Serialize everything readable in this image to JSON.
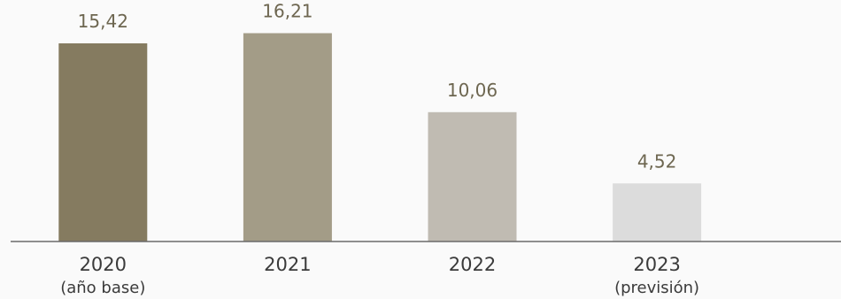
{
  "chart_data": {
    "type": "bar",
    "categories": [
      "2020",
      "2021",
      "2022",
      "2023"
    ],
    "category_sublabels": [
      "(año base)",
      "",
      "",
      "(previsión)"
    ],
    "values": [
      15.42,
      16.21,
      10.06,
      4.52
    ],
    "value_labels": [
      "15,42",
      "16,21",
      "10,06",
      "4,52"
    ],
    "bar_colors": [
      "#857b60",
      "#a39c87",
      "#c0bbb2",
      "#dcdcdc"
    ],
    "title": "",
    "xlabel": "",
    "ylabel": "",
    "ylim": [
      0,
      17
    ],
    "grid": false,
    "legend": "none"
  }
}
